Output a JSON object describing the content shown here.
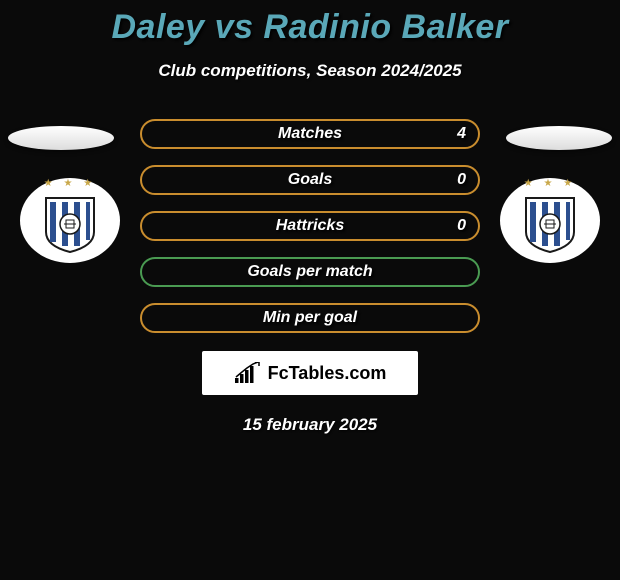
{
  "title": "Daley vs Radinio Balker",
  "subtitle": "Club competitions, Season 2024/2025",
  "title_color": "#5aa8b8",
  "stats": [
    {
      "label": "Matches",
      "value_right": "4",
      "border_color": "#c98d2e"
    },
    {
      "label": "Goals",
      "value_right": "0",
      "border_color": "#c98d2e"
    },
    {
      "label": "Hattricks",
      "value_right": "0",
      "border_color": "#c98d2e"
    },
    {
      "label": "Goals per match",
      "value_right": "",
      "border_color": "#4a9b52"
    },
    {
      "label": "Min per goal",
      "value_right": "",
      "border_color": "#c98d2e"
    }
  ],
  "logo_text": "FcTables.com",
  "date": "15 february 2025",
  "crest": {
    "star_color": "#c9a84a",
    "stripe_colors": [
      "#2c4f8f",
      "#ffffff"
    ],
    "outline_color": "#1a1a1a"
  }
}
